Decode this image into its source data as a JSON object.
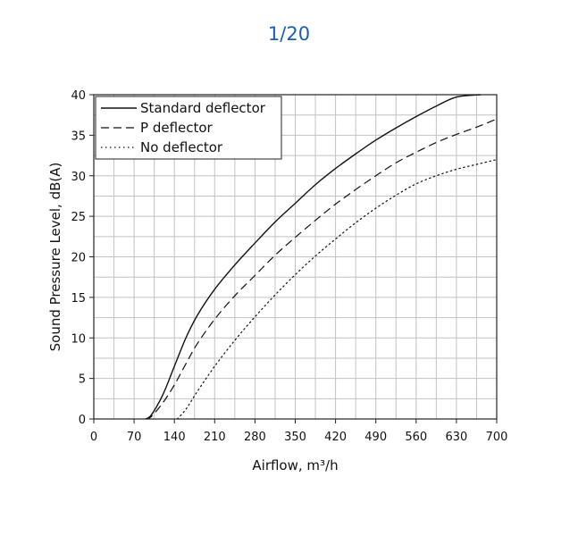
{
  "viewer": {
    "page_counter": "1/20"
  },
  "chart_data": {
    "type": "line",
    "title": "",
    "xlabel": "Airflow, m³/h",
    "ylabel": "Sound Pressure Level, dB(A)",
    "xlim": [
      0,
      700
    ],
    "ylim": [
      0,
      40
    ],
    "xticks": [
      0,
      70,
      140,
      210,
      280,
      350,
      420,
      490,
      560,
      630,
      700
    ],
    "yticks": [
      0,
      5,
      10,
      15,
      20,
      25,
      30,
      35,
      40
    ],
    "x_minor_step": 35,
    "y_minor_step": 2.5,
    "grid": true,
    "legend_position": "top-left",
    "series": [
      {
        "name": "Standard deflector",
        "style": "solid",
        "points": [
          [
            90,
            0
          ],
          [
            100,
            0.5
          ],
          [
            120,
            3
          ],
          [
            140,
            6.5
          ],
          [
            160,
            10
          ],
          [
            180,
            12.8
          ],
          [
            210,
            16
          ],
          [
            245,
            19
          ],
          [
            280,
            21.7
          ],
          [
            315,
            24.3
          ],
          [
            350,
            26.6
          ],
          [
            385,
            28.9
          ],
          [
            420,
            30.9
          ],
          [
            455,
            32.7
          ],
          [
            490,
            34.4
          ],
          [
            525,
            35.9
          ],
          [
            560,
            37.3
          ],
          [
            595,
            38.6
          ],
          [
            630,
            39.7
          ],
          [
            672,
            40
          ]
        ]
      },
      {
        "name": "P deflector",
        "style": "dashed",
        "points": [
          [
            90,
            0
          ],
          [
            100,
            0.3
          ],
          [
            120,
            2
          ],
          [
            140,
            4.2
          ],
          [
            160,
            6.8
          ],
          [
            180,
            9.3
          ],
          [
            210,
            12.3
          ],
          [
            245,
            15.2
          ],
          [
            280,
            17.7
          ],
          [
            315,
            20.2
          ],
          [
            350,
            22.4
          ],
          [
            385,
            24.5
          ],
          [
            420,
            26.5
          ],
          [
            455,
            28.3
          ],
          [
            490,
            30
          ],
          [
            525,
            31.6
          ],
          [
            560,
            32.9
          ],
          [
            595,
            34.1
          ],
          [
            630,
            35.1
          ],
          [
            665,
            36
          ],
          [
            700,
            37
          ]
        ]
      },
      {
        "name": "No deflector",
        "style": "dotted",
        "points": [
          [
            145,
            0
          ],
          [
            160,
            1.2
          ],
          [
            180,
            3.4
          ],
          [
            210,
            6.5
          ],
          [
            245,
            9.7
          ],
          [
            280,
            12.6
          ],
          [
            315,
            15.3
          ],
          [
            350,
            17.8
          ],
          [
            385,
            20.1
          ],
          [
            420,
            22.2
          ],
          [
            455,
            24.2
          ],
          [
            490,
            26
          ],
          [
            525,
            27.6
          ],
          [
            560,
            29
          ],
          [
            595,
            30
          ],
          [
            630,
            30.8
          ],
          [
            665,
            31.4
          ],
          [
            700,
            32
          ]
        ]
      }
    ]
  }
}
